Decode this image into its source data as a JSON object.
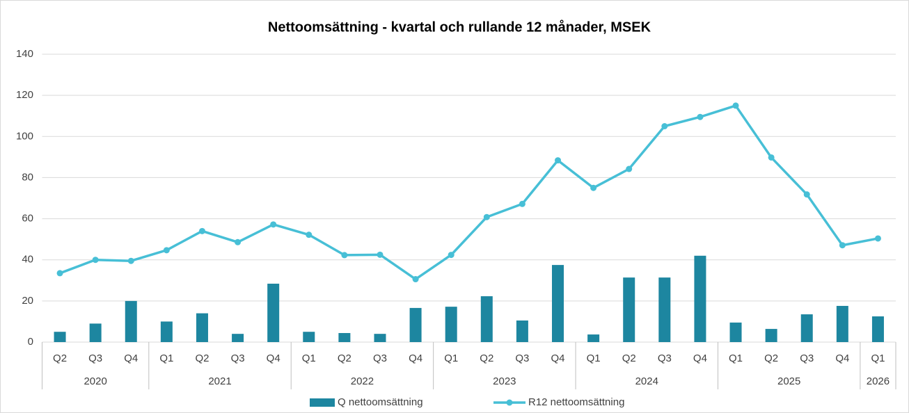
{
  "chart_data": {
    "type": "bar_line",
    "title": "Nettoomsättning - kvartal och rullande 12 månader, MSEK",
    "groups": [
      {
        "label": "2020",
        "categories": [
          "Q2",
          "Q3",
          "Q4"
        ]
      },
      {
        "label": "2021",
        "categories": [
          "Q1",
          "Q2",
          "Q3",
          "Q4"
        ]
      },
      {
        "label": "2022",
        "categories": [
          "Q1",
          "Q2",
          "Q3",
          "Q4"
        ]
      },
      {
        "label": "2023",
        "categories": [
          "Q1",
          "Q2",
          "Q3",
          "Q4"
        ]
      },
      {
        "label": "2024",
        "categories": [
          "Q1",
          "Q2",
          "Q3",
          "Q4"
        ]
      },
      {
        "label": "2025",
        "categories": [
          "Q1",
          "Q2",
          "Q3",
          "Q4"
        ]
      },
      {
        "label": "2026",
        "categories": [
          "Q1"
        ]
      }
    ],
    "series": [
      {
        "name": "Q nettoomsättning",
        "type": "bar",
        "color": "#1d86a0",
        "values": [
          5,
          9,
          20,
          10,
          14,
          4,
          28.4,
          5,
          4.4,
          4,
          16.6,
          17.2,
          22.3,
          10.5,
          37.5,
          3.7,
          31.4,
          31.4,
          42,
          9.5,
          6.4,
          13.5,
          17.6,
          12.5
        ]
      },
      {
        "name": "R12 nettoomsättning",
        "type": "line",
        "color": "#47bfd6",
        "values": [
          33.5,
          40,
          39.5,
          44.7,
          54,
          48.6,
          57.2,
          52.2,
          42.3,
          42.5,
          30.6,
          42.4,
          60.8,
          67.2,
          88.4,
          75,
          84.2,
          105,
          109.5,
          115,
          89.8,
          71.8,
          47.1,
          50.4
        ]
      }
    ],
    "ylim": [
      0,
      140
    ],
    "yticks": [
      0,
      20,
      40,
      60,
      80,
      100,
      120,
      140
    ],
    "grid": true,
    "legend": "bottom"
  }
}
